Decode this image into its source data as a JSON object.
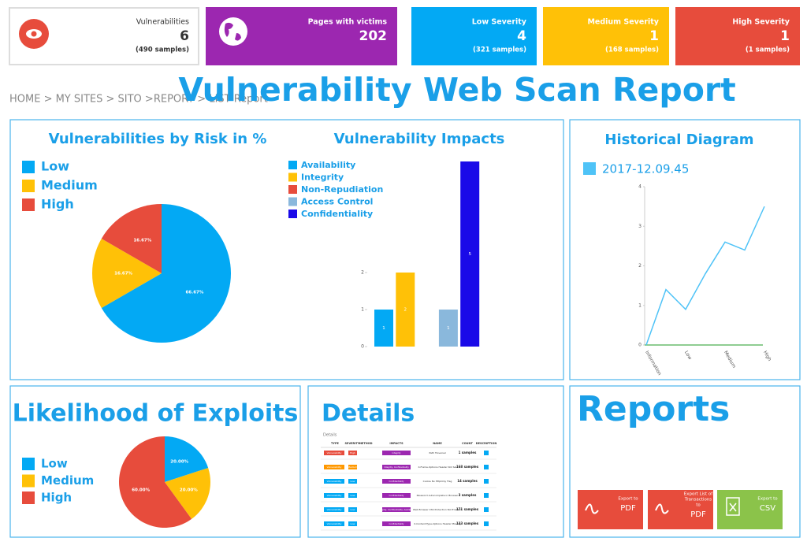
{
  "cards": [
    {
      "label": "Vulnerabilities",
      "value": 6,
      "sub": "(490 samples)"
    },
    {
      "label": "Pages with victims",
      "value": 202
    },
    {
      "label": "Low Severity",
      "value": 4,
      "sub": "(321 samples)"
    },
    {
      "label": "Medium Severity",
      "value": 1,
      "sub": "(168 samples)"
    },
    {
      "label": "High Severity",
      "value": 1,
      "sub": "(1 samples)"
    }
  ],
  "breadcrumb": "HOME > MY SITES > SITO >REPORT > LIST Report",
  "title": "Vulnerability Web Scan Report",
  "chart_data": [
    {
      "type": "pie",
      "title": "Vulnerabilities by Risk in %",
      "categories": [
        "Low",
        "Medium",
        "High"
      ],
      "values": [
        66.67,
        16.67,
        16.67
      ],
      "value_labels": [
        "66.67%",
        "16.67%",
        "16.67%"
      ],
      "colors": [
        "#03a9f4",
        "#ffc107",
        "#e74c3c"
      ]
    },
    {
      "type": "bar",
      "title": "Vulnerability Impacts",
      "ylim": [
        0,
        5
      ],
      "yticks": [
        0,
        1,
        2
      ],
      "series": [
        {
          "name": "Availability",
          "color": "#03a9f4",
          "values": [
            1
          ]
        },
        {
          "name": "Integrity",
          "color": "#ffc107",
          "values": [
            2
          ]
        },
        {
          "name": "Non-Repudiation",
          "color": "#e74c3c",
          "values": [
            null
          ]
        },
        {
          "name": "Access Control",
          "color": "#8ab8dc",
          "values": [
            1
          ]
        },
        {
          "name": "Confidentiality",
          "color": "#1a0ae8",
          "values": [
            5
          ]
        }
      ]
    },
    {
      "type": "line",
      "title": "Historical Diagram",
      "categories": [
        "Information",
        null,
        "Low",
        null,
        "Medium",
        null,
        "High"
      ],
      "series": [
        {
          "name": "2017-12.09.45",
          "color": "#4fc3f7",
          "values": [
            0,
            1.4,
            0.9,
            1.8,
            2.6,
            2.4,
            3.5
          ]
        }
      ],
      "ylim": [
        0,
        4
      ],
      "yticks": [
        0,
        1,
        2,
        3,
        4
      ]
    },
    {
      "type": "pie",
      "title": "Likelihood of Exploits",
      "categories": [
        "Low",
        "Medium",
        "High"
      ],
      "values": [
        20,
        20,
        60
      ],
      "value_labels": [
        "20.00%",
        "20.00%",
        "60.00%"
      ],
      "colors": [
        "#03a9f4",
        "#ffc107",
        "#e74c3c"
      ]
    }
  ],
  "details": {
    "title": "Details",
    "caption": "Details",
    "columns": [
      "TYPE",
      "SEVERITY",
      "METHOD",
      "IMPACTS",
      "NAME",
      "COUNT",
      "DESCRIPTION"
    ],
    "rows": [
      [
        "Vulnerability",
        "High",
        "Integrity",
        "Path Traversal",
        "1 samples"
      ],
      [
        "Vulnerability",
        "Medium",
        "Integrity, Confidentiality",
        "X-Frame-Options Header Not Set",
        "168 samples"
      ],
      [
        "Vulnerability",
        "Low",
        "Confidentiality",
        "Cookie No HttpOnly Flag",
        "14 samples"
      ],
      [
        "Vulnerability",
        "Low",
        "Confidentiality",
        "Password Autocomplete in Browser",
        "3 samples"
      ],
      [
        "Vulnerability",
        "Low",
        "Integrity, Confidentiality, Availability",
        "Web Browser XSS Protection Not Enabled",
        "171 samples"
      ],
      [
        "Vulnerability",
        "Low",
        "Confidentiality",
        "X-Content-Type-Options Header Missing",
        "133 samples"
      ]
    ]
  },
  "reports": {
    "title": "Reports",
    "buttons": [
      {
        "lines": [
          "Export to"
        ],
        "format": "PDF"
      },
      {
        "lines": [
          "Export List of",
          "Transactions",
          "to"
        ],
        "format": "PDF"
      },
      {
        "lines": [
          "Export to"
        ],
        "format": "CSV"
      }
    ]
  }
}
